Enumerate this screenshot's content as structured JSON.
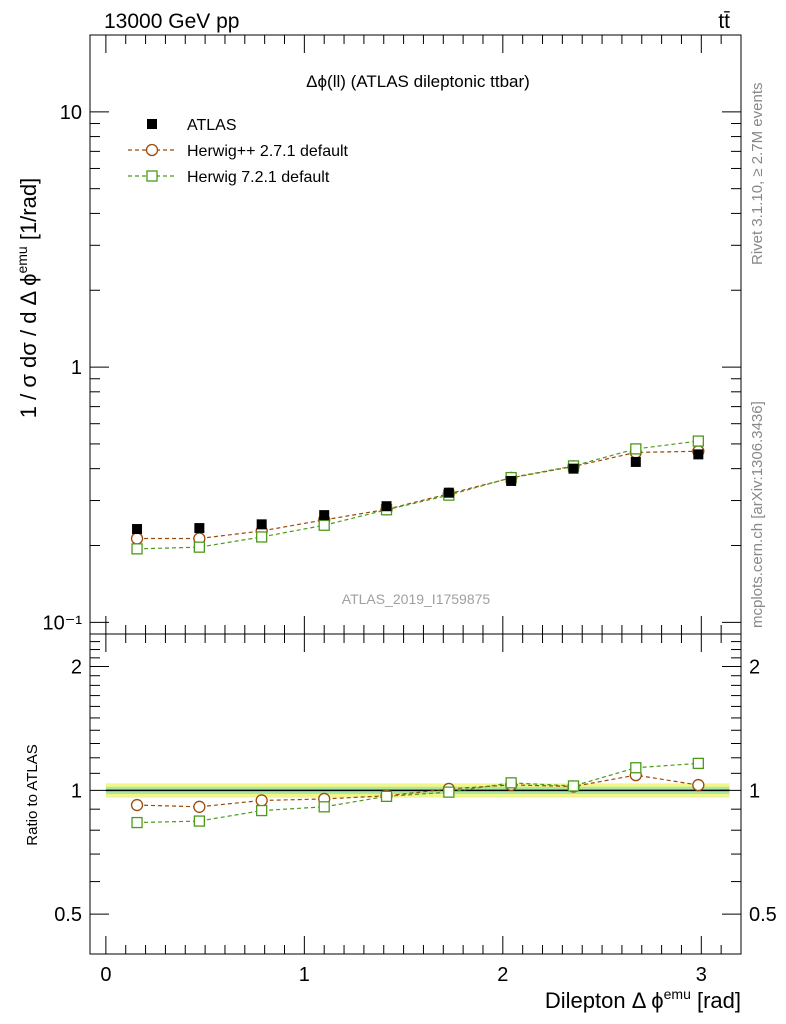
{
  "header": {
    "energy_label": "13000 GeV pp",
    "process_label": "tt̄"
  },
  "side_text": {
    "rivet": "Rivet 3.1.10, ≥ 2.7M events",
    "mcplots": "mcplots.cern.ch [arXiv:1306.3436]"
  },
  "chart_data": [
    {
      "type": "scatter",
      "panel": "main",
      "title": "Δϕ(ll) (ATLAS dileptonic ttbar)",
      "watermark": "ATLAS_2019_I1759875",
      "xlabel": "Dilepton Δ ϕ^emu [rad]",
      "ylabel": "1 / σ  dσ / d Δ ϕ^emu [1/rad]",
      "xlim": [
        -0.08,
        3.2
      ],
      "ylim": [
        0.09,
        20
      ],
      "yscale": "log",
      "y_ticks": [
        0.1,
        1,
        10
      ],
      "y_tick_labels": [
        "10⁻¹",
        "1",
        "10"
      ],
      "legend_position": "top-left",
      "x": [
        0.157,
        0.471,
        0.785,
        1.1,
        1.414,
        1.728,
        2.042,
        2.356,
        2.67,
        2.985
      ],
      "series": [
        {
          "name": "ATLAS",
          "style": "data",
          "color": "#000000",
          "values": [
            0.232,
            0.234,
            0.242,
            0.263,
            0.285,
            0.322,
            0.358,
            0.4,
            0.425,
            0.455
          ]
        },
        {
          "name": "Herwig++ 2.7.1 default",
          "style": "circle-dashed",
          "color": "#9a4a0a",
          "values": [
            0.213,
            0.213,
            0.228,
            0.252,
            0.277,
            0.319,
            0.368,
            0.408,
            0.463,
            0.468
          ]
        },
        {
          "name": "Herwig 7.2.1 default",
          "style": "square-dashed",
          "color": "#4c9a1a",
          "values": [
            0.194,
            0.197,
            0.216,
            0.24,
            0.276,
            0.315,
            0.369,
            0.41,
            0.478,
            0.513
          ]
        }
      ]
    },
    {
      "type": "scatter",
      "panel": "ratio",
      "ylabel": "Ratio to ATLAS",
      "xlabel": "Dilepton Δ ϕ^emu [rad]",
      "xlim": [
        -0.08,
        3.2
      ],
      "ylim": [
        0.4,
        2.4
      ],
      "yscale": "log",
      "y_ticks": [
        0.5,
        1,
        2
      ],
      "y_tick_labels": [
        "0.5",
        "1",
        "2"
      ],
      "x_ticks": [
        0,
        1,
        2,
        3
      ],
      "x_tick_labels": [
        "0",
        "1",
        "2",
        "3"
      ],
      "x": [
        0.157,
        0.471,
        0.785,
        1.1,
        1.414,
        1.728,
        2.042,
        2.356,
        2.67,
        2.985
      ],
      "band_inner": 0.02,
      "band_outer": 0.04,
      "series": [
        {
          "name": "Herwig++ 2.7.1 default",
          "style": "circle-dashed",
          "color": "#9a4a0a",
          "values": [
            0.921,
            0.912,
            0.945,
            0.953,
            0.97,
            1.008,
            1.031,
            1.022,
            1.089,
            1.03
          ]
        },
        {
          "name": "Herwig 7.2.1 default",
          "style": "square-dashed",
          "color": "#4c9a1a",
          "values": [
            0.835,
            0.842,
            0.893,
            0.912,
            0.967,
            0.99,
            1.043,
            1.025,
            1.135,
            1.163
          ]
        }
      ]
    }
  ]
}
